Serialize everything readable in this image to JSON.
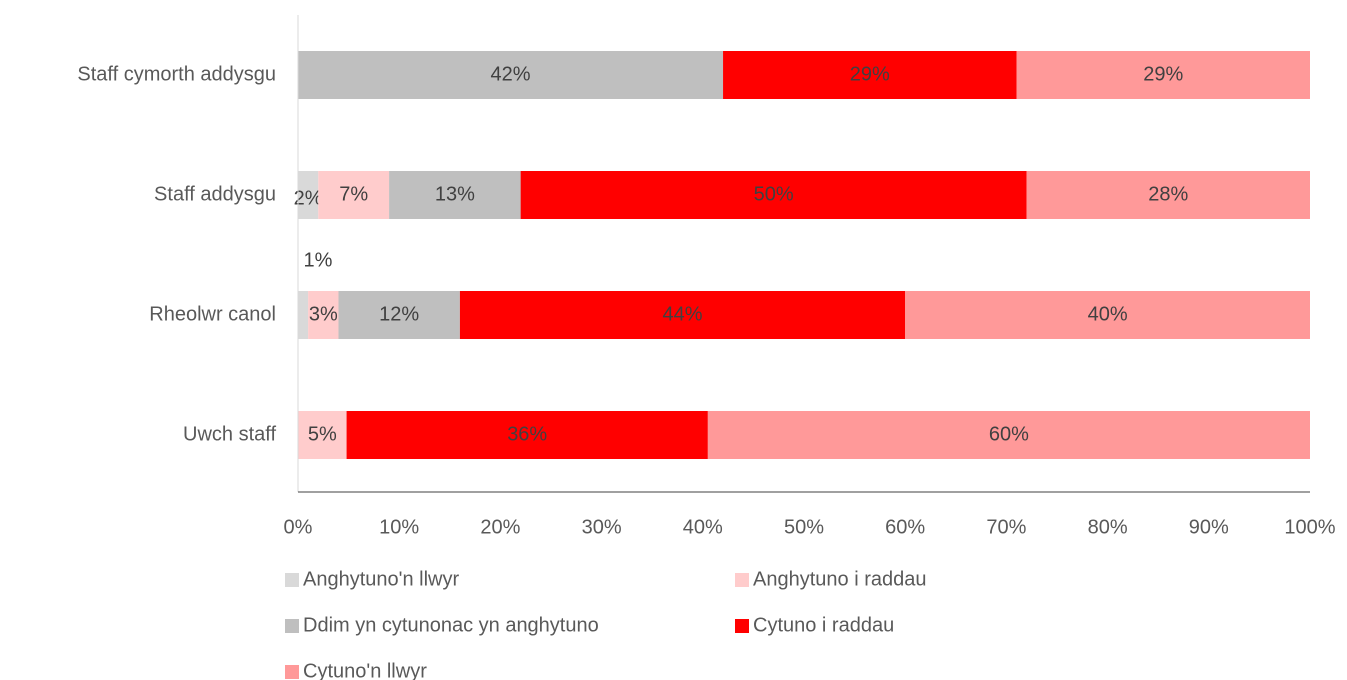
{
  "chart_data": {
    "type": "stacked-barh",
    "categories": [
      "Staff cymorth addysgu",
      "Staff addysgu",
      "Rheolwr canol",
      "Uwch staff"
    ],
    "series": [
      {
        "name": "Anghytuno'n llwyr",
        "color": "#d9d9d9",
        "values": [
          null,
          2,
          1,
          null
        ],
        "value_labels": [
          null,
          "2%",
          "1%",
          null
        ]
      },
      {
        "name": "Anghytuno i raddau",
        "color": "#ffcccc",
        "values": [
          null,
          7,
          3,
          4.8
        ],
        "value_labels": [
          null,
          "7%",
          "3%",
          "5%"
        ]
      },
      {
        "name": "Ddim yn cytunonac yn anghytuno",
        "color": "#bfbfbf",
        "values": [
          42,
          13,
          12,
          null
        ],
        "value_labels": [
          "42%",
          "13%",
          "12%",
          null
        ]
      },
      {
        "name": "Cytuno i raddau",
        "color": "#ff0000",
        "values": [
          29,
          50,
          44,
          35.7
        ],
        "value_labels": [
          "29%",
          "50%",
          "44%",
          "36%"
        ]
      },
      {
        "name": "Cytuno'n llwyr",
        "color": "#ff9999",
        "values": [
          29,
          28,
          40,
          59.5
        ],
        "value_labels": [
          "29%",
          "28%",
          "40%",
          "60%"
        ]
      }
    ],
    "xlim": [
      0,
      100
    ],
    "xticks": [
      {
        "value": 0,
        "label": "0%"
      },
      {
        "value": 10,
        "label": "10%"
      },
      {
        "value": 20,
        "label": "20%"
      },
      {
        "value": 30,
        "label": "30%"
      },
      {
        "value": 40,
        "label": "40%"
      },
      {
        "value": 50,
        "label": "50%"
      },
      {
        "value": 60,
        "label": "60%"
      },
      {
        "value": 70,
        "label": "70%"
      },
      {
        "value": 80,
        "label": "80%"
      },
      {
        "value": 90,
        "label": "90%"
      },
      {
        "value": 100,
        "label": "100%"
      }
    ],
    "legend": "bottom"
  }
}
